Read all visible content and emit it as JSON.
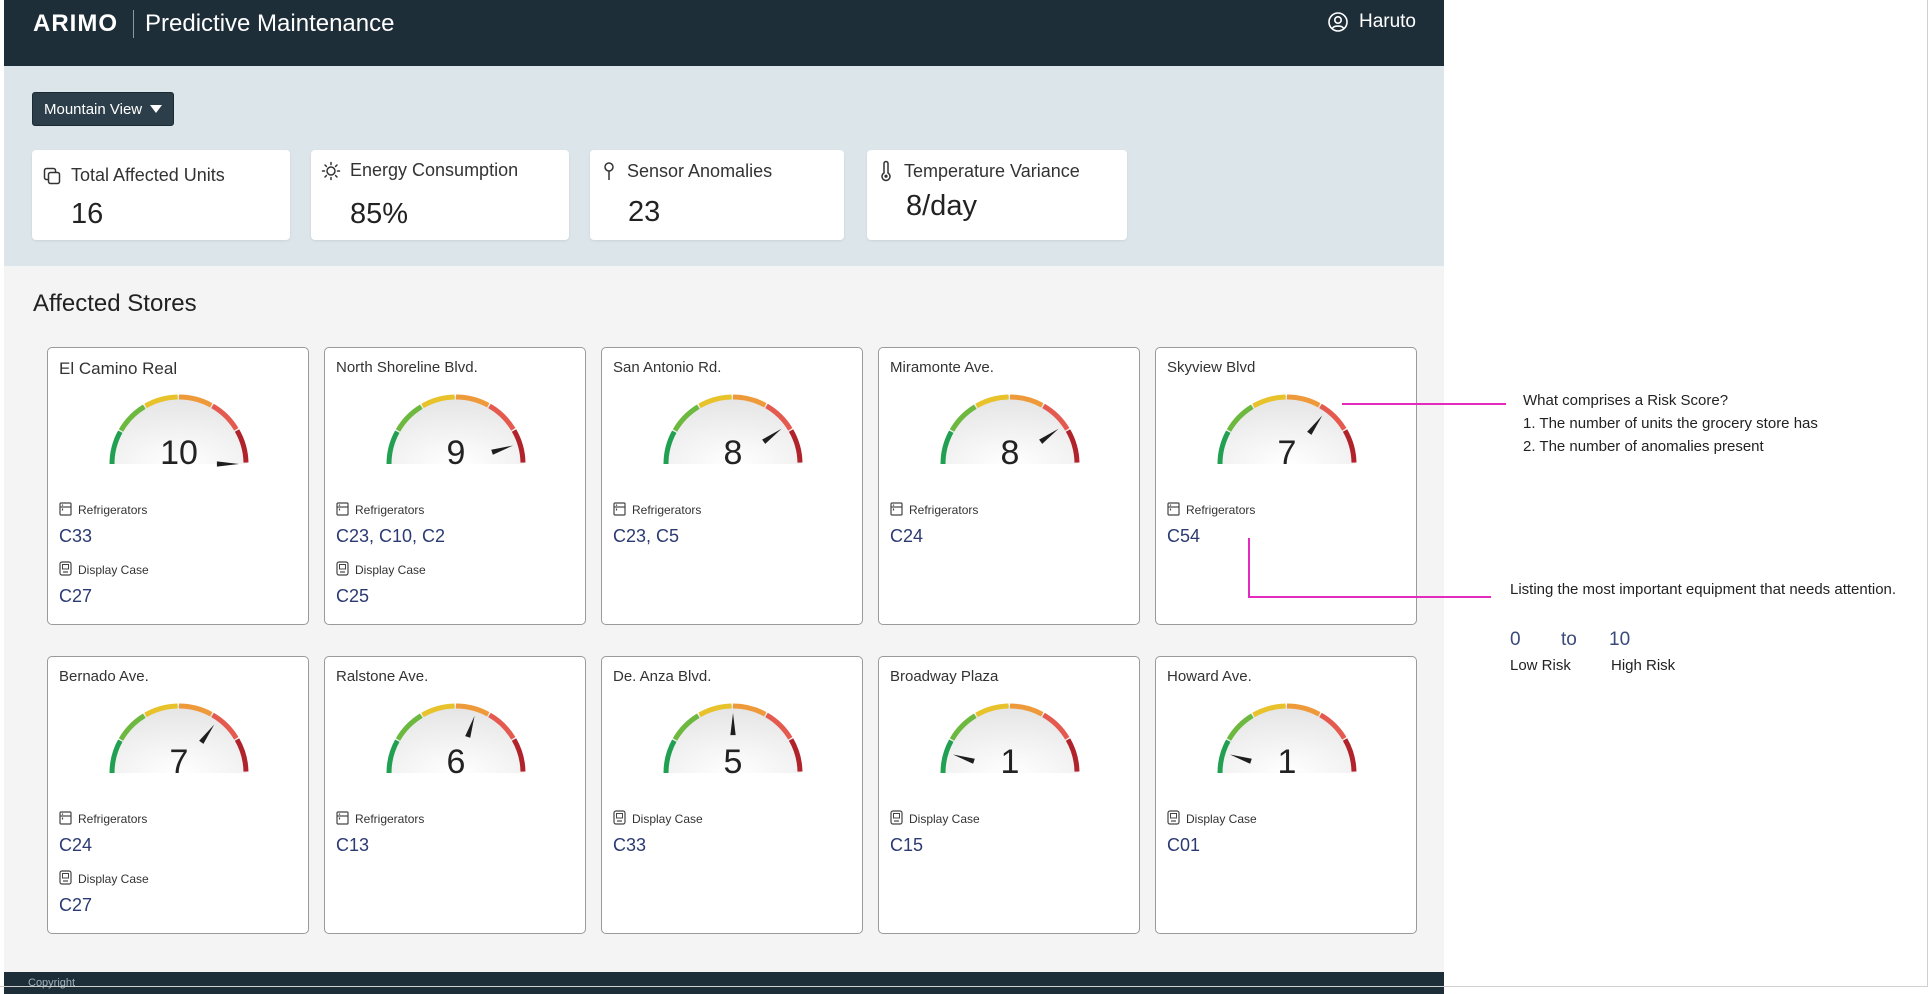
{
  "header": {
    "logo": "ARIMO",
    "title": "Predictive Maintenance",
    "user": "Haruto"
  },
  "filter": {
    "location": "Mountain View"
  },
  "kpis": [
    {
      "label": "Total Affected Units",
      "value": "16",
      "icon": "copy-icon"
    },
    {
      "label": "Energy Consumption",
      "value": "85%",
      "icon": "sun-icon"
    },
    {
      "label": "Sensor Anomalies",
      "value": "23",
      "icon": "pin-icon"
    },
    {
      "label": "Temperature Variance",
      "value": "8/day",
      "icon": "thermometer-icon"
    }
  ],
  "section_title": "Affected Stores",
  "gauge_colors": [
    "#22a052",
    "#6db83f",
    "#e8c22a",
    "#ee9a3a",
    "#e55a4f",
    "#b0232a"
  ],
  "stores": [
    {
      "name": "El Camino Real",
      "score": "10",
      "equipment": [
        {
          "type": "Refrigerators",
          "icon": "refrigerator-icon",
          "units": "C33"
        },
        {
          "type": "Display Case",
          "icon": "display-case-icon",
          "units": "C27"
        }
      ]
    },
    {
      "name": "North Shoreline Blvd.",
      "score": "9",
      "equipment": [
        {
          "type": "Refrigerators",
          "icon": "refrigerator-icon",
          "units": "C23, C10, C2"
        },
        {
          "type": "Display Case",
          "icon": "display-case-icon",
          "units": "C25"
        }
      ]
    },
    {
      "name": "San Antonio Rd.",
      "score": "8",
      "equipment": [
        {
          "type": "Refrigerators",
          "icon": "refrigerator-icon",
          "units": "C23, C5"
        }
      ]
    },
    {
      "name": "Miramonte Ave.",
      "score": "8",
      "equipment": [
        {
          "type": "Refrigerators",
          "icon": "refrigerator-icon",
          "units": "C24"
        }
      ]
    },
    {
      "name": "Skyview Blvd",
      "score": "7",
      "equipment": [
        {
          "type": "Refrigerators",
          "icon": "refrigerator-icon",
          "units": "C54"
        }
      ]
    },
    {
      "name": "Bernado Ave.",
      "score": "7",
      "equipment": [
        {
          "type": "Refrigerators",
          "icon": "refrigerator-icon",
          "units": "C24"
        },
        {
          "type": "Display Case",
          "icon": "display-case-icon",
          "units": "C27"
        }
      ]
    },
    {
      "name": "Ralstone Ave.",
      "score": "6",
      "equipment": [
        {
          "type": "Refrigerators",
          "icon": "refrigerator-icon",
          "units": "C13"
        }
      ]
    },
    {
      "name": "De. Anza Blvd.",
      "score": "5",
      "equipment": [
        {
          "type": "Display Case",
          "icon": "display-case-icon",
          "units": "C33"
        }
      ]
    },
    {
      "name": "Broadway Plaza",
      "score": "1",
      "equipment": [
        {
          "type": "Display Case",
          "icon": "display-case-icon",
          "units": "C15"
        }
      ]
    },
    {
      "name": "Howard Ave.",
      "score": "1",
      "equipment": [
        {
          "type": "Display Case",
          "icon": "display-case-icon",
          "units": "C01"
        }
      ]
    }
  ],
  "footer": {
    "text": "Copyright"
  },
  "annotations": {
    "risk_title": "What comprises a Risk Score?",
    "risk_item_1": "1. The number of units the grocery store has",
    "risk_item_2": "2. The number of anomalies present",
    "equipment_note": "Listing the most important equipment that needs attention.",
    "scale_min": "0",
    "scale_to": "to",
    "scale_max": "10",
    "low_label": "Low Risk",
    "high_label": "High Risk"
  }
}
